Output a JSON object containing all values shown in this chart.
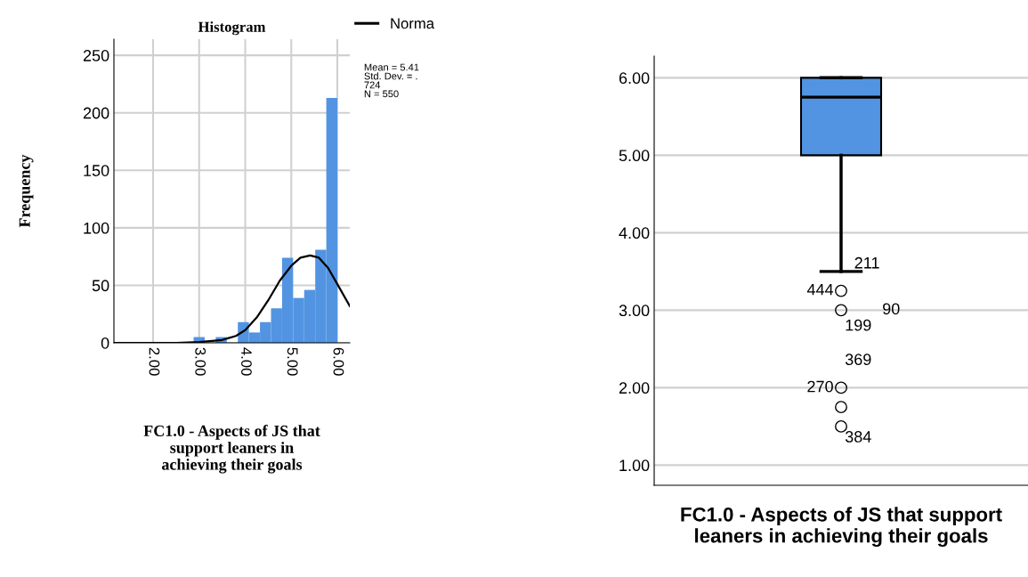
{
  "chart_data": [
    {
      "type": "histogram",
      "title": "Histogram",
      "ylabel": "Frequency",
      "xlabel": "FC1.0 - Aspects of JS that support leaners in achieving their goals",
      "bins": [
        2.88,
        3.12,
        3.36,
        3.6,
        3.84,
        4.08,
        4.32,
        4.56,
        4.8,
        5.04,
        5.28,
        5.52,
        5.76,
        6.0
      ],
      "values": [
        5,
        0,
        5,
        0,
        18,
        9,
        18,
        30,
        74,
        39,
        46,
        81,
        213
      ],
      "color": "#5294e2",
      "series": [
        {
          "name": "Norma",
          "type": "line",
          "color": "#000000",
          "x": [
            1.15,
            2.5,
            3.0,
            3.5,
            3.8,
            4.0,
            4.25,
            4.5,
            4.75,
            5.0,
            5.2,
            5.41,
            5.6,
            5.8,
            6.0,
            6.27
          ],
          "values": [
            0,
            0,
            0.6,
            2.5,
            6,
            11,
            22,
            37,
            54,
            67,
            74,
            76,
            74,
            65,
            51,
            32
          ]
        }
      ],
      "xlim": [
        1.15,
        6.27
      ],
      "xticks": [
        {
          "value": 2,
          "label": "2.00"
        },
        {
          "value": 3,
          "label": "3.00"
        },
        {
          "value": 4,
          "label": "4.00"
        },
        {
          "value": 5,
          "label": "5.00"
        },
        {
          "value": 6,
          "label": "6.00"
        }
      ],
      "ylim": [
        0,
        264
      ],
      "yticks": [
        0,
        50,
        100,
        150,
        200,
        250
      ],
      "grid": true,
      "legend": "top right",
      "annotations": [
        "Mean = 5.41\nStd. Dev. = .\n724\nN = 550"
      ]
    },
    {
      "type": "box",
      "xlabel": "FC1.0 - Aspects of JS that support leaners in achieving their goals",
      "categories": [
        null
      ],
      "color": "#5294e2",
      "boxes": [
        {
          "low": 3.5,
          "q1": 5.0,
          "median": 5.75,
          "q3": 6.0,
          "high": 6.0,
          "outliers": [
            3.25,
            3.0,
            2.0,
            1.75,
            1.5
          ]
        }
      ],
      "ylim": [
        0.74,
        6.28
      ],
      "yticks": [
        {
          "value": 1,
          "label": "1.00"
        },
        {
          "value": 2,
          "label": "2.00"
        },
        {
          "value": 3,
          "label": "3.00"
        },
        {
          "value": 4,
          "label": "4.00"
        },
        {
          "value": 5,
          "label": "5.00"
        },
        {
          "value": 6,
          "label": "6.00"
        }
      ],
      "grid": "y",
      "annotations": [
        "211",
        "444",
        "90",
        "199",
        "369",
        "270",
        "384"
      ]
    }
  ]
}
